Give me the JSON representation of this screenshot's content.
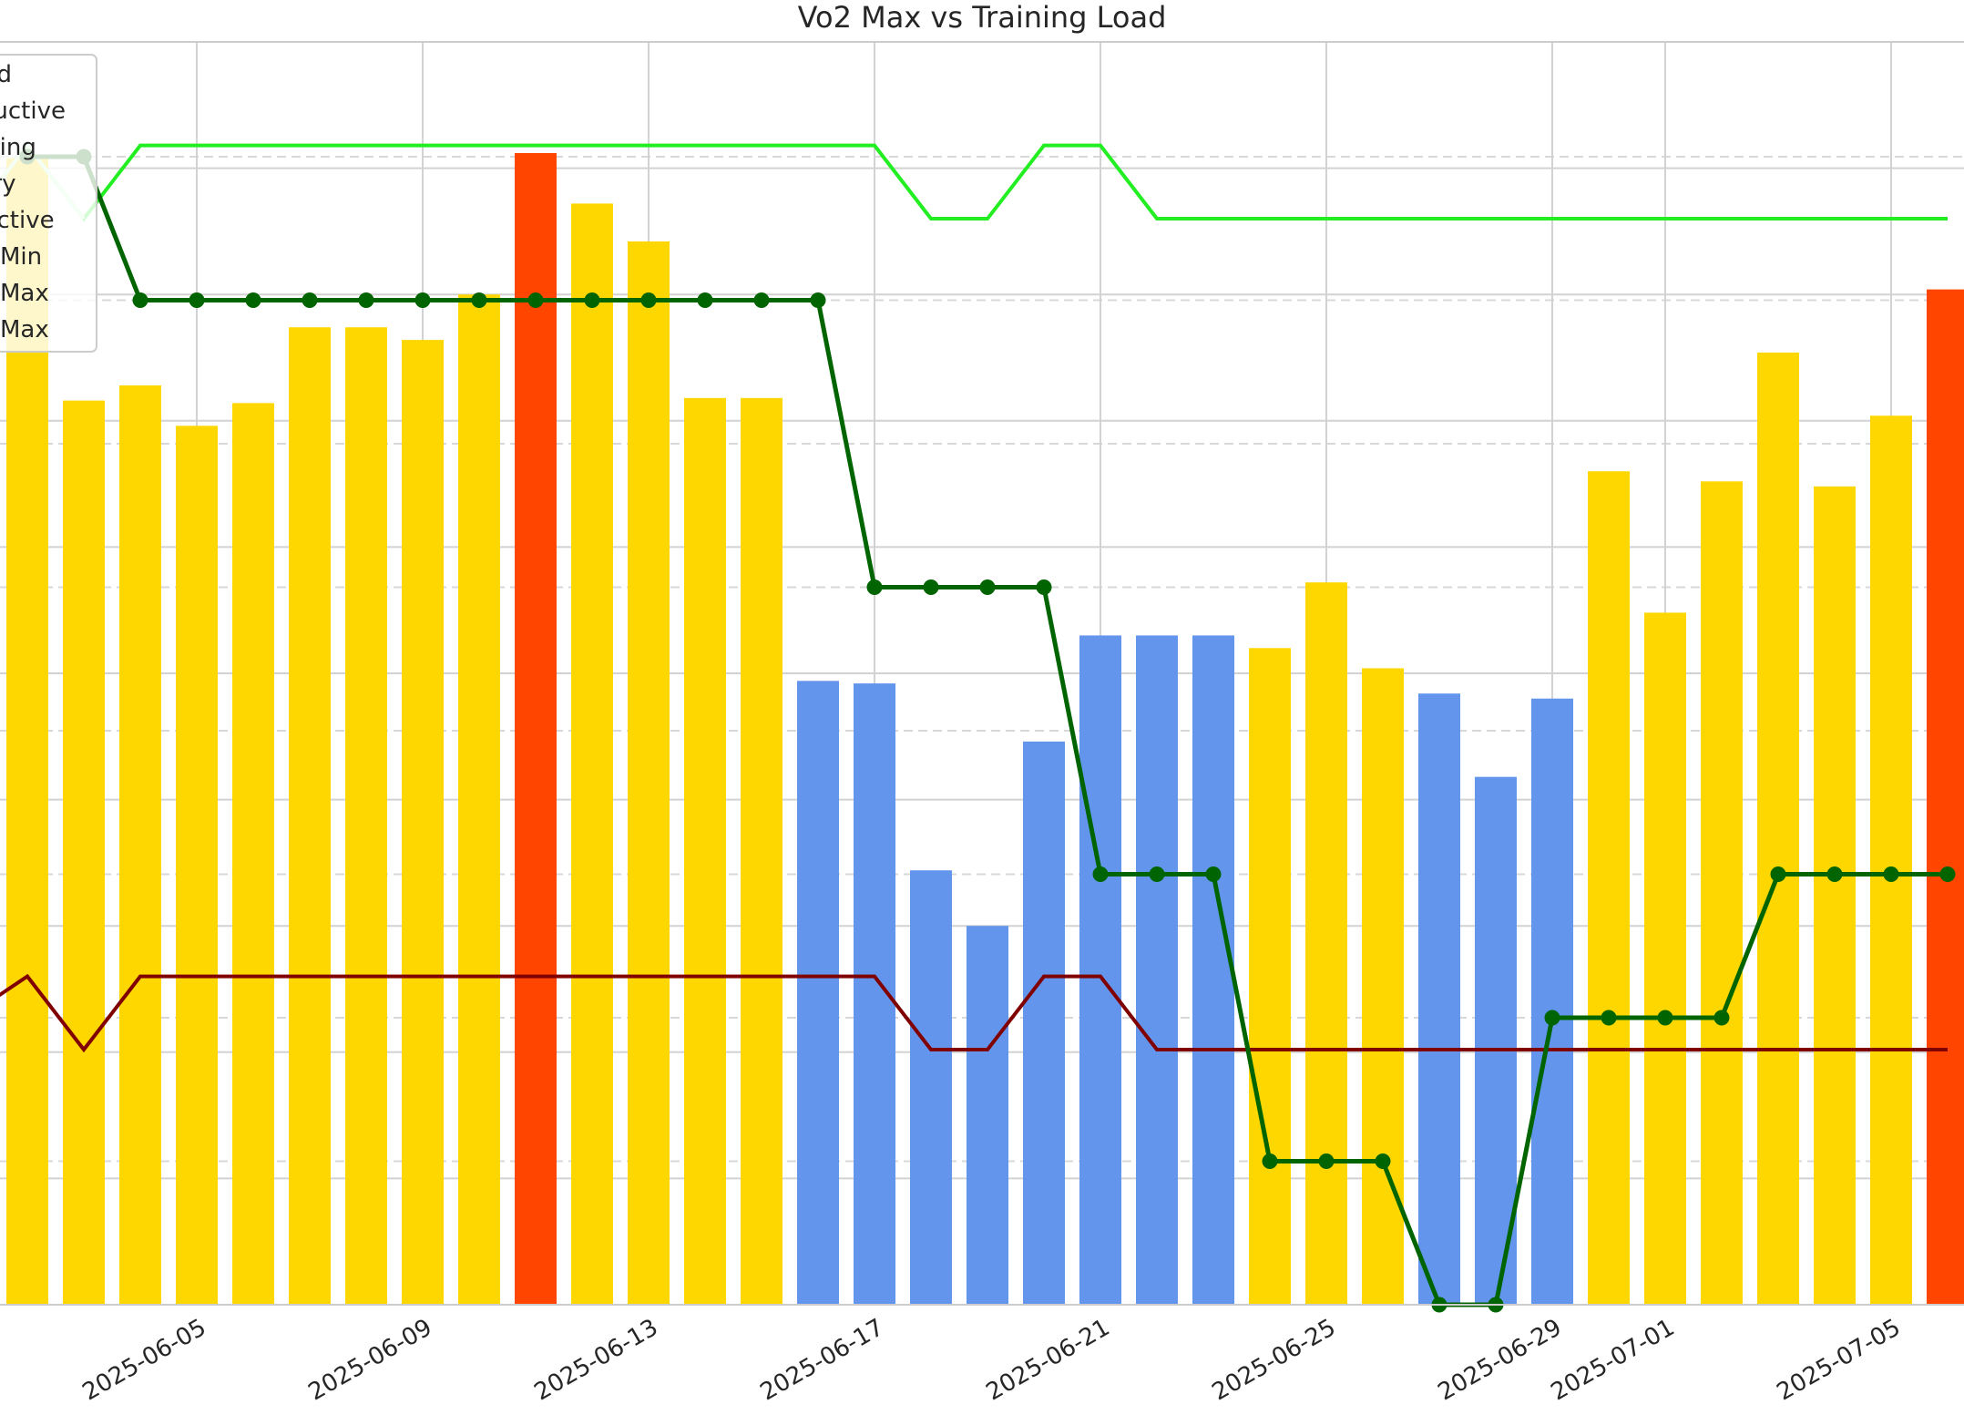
{
  "chart_data": {
    "type": "bar",
    "title": "Vo2 Max vs Training Load",
    "xlabel": "",
    "ylabel": "",
    "grid": true,
    "legend_position": "top-left",
    "legend_entries": [
      "nd",
      "oductive",
      "aining",
      "very",
      "uctive",
      "Min",
      "Max",
      "Max"
    ],
    "dates": [
      "2025-06-02",
      "2025-06-03",
      "2025-06-04",
      "2025-06-05",
      "2025-06-06",
      "2025-06-07",
      "2025-06-08",
      "2025-06-09",
      "2025-06-10",
      "2025-06-11",
      "2025-06-12",
      "2025-06-13",
      "2025-06-14",
      "2025-06-15",
      "2025-06-16",
      "2025-06-17",
      "2025-06-18",
      "2025-06-19",
      "2025-06-20",
      "2025-06-21",
      "2025-06-22",
      "2025-06-23",
      "2025-06-24",
      "2025-06-25",
      "2025-06-26",
      "2025-06-27",
      "2025-06-28",
      "2025-06-29",
      "2025-06-30",
      "2025-07-01",
      "2025-07-02",
      "2025-07-03",
      "2025-07-04",
      "2025-07-05",
      "2025-07-06"
    ],
    "tick_labels": [
      "2025-06-05",
      "2025-06-09",
      "2025-06-13",
      "2025-06-17",
      "2025-06-21",
      "2025-06-25",
      "2025-06-29",
      "2025-07-01",
      "2025-07-05"
    ],
    "tick_dates": [
      "2025-06-05",
      "2025-06-09",
      "2025-06-13",
      "2025-06-17",
      "2025-06-21",
      "2025-06-25",
      "2025-06-29",
      "2025-07-01",
      "2025-07-05"
    ],
    "load": {
      "ylim": [
        0,
        500
      ],
      "values": [
        454,
        358,
        364,
        348,
        357,
        387,
        387,
        382,
        400,
        456,
        436,
        421,
        359,
        359,
        247,
        246,
        172,
        150,
        223,
        265,
        265,
        265,
        260,
        286,
        252,
        242,
        209,
        240,
        330,
        274,
        326,
        377,
        324,
        352,
        402
      ],
      "status": [
        "productive",
        "productive",
        "productive",
        "productive",
        "productive",
        "productive",
        "productive",
        "productive",
        "productive",
        "peaking",
        "productive",
        "productive",
        "productive",
        "productive",
        "recovery",
        "recovery",
        "recovery",
        "recovery",
        "recovery",
        "recovery",
        "recovery",
        "recovery",
        "productive",
        "productive",
        "productive",
        "recovery",
        "recovery",
        "recovery",
        "productive",
        "productive",
        "productive",
        "productive",
        "productive",
        "productive",
        "peaking"
      ],
      "colors": {
        "productive": "#FFD700",
        "recovery": "#6495ED",
        "peaking": "#FF4500"
      }
    },
    "vo2": {
      "ylim": [
        44.0,
        52.8
      ],
      "x": [
        "2025-06-02",
        "2025-06-03",
        "2025-06-04",
        "2025-06-05",
        "2025-06-06",
        "2025-06-07",
        "2025-06-08",
        "2025-06-09",
        "2025-06-10",
        "2025-06-11",
        "2025-06-12",
        "2025-06-13",
        "2025-06-14",
        "2025-06-15",
        "2025-06-16",
        "2025-06-17",
        "2025-06-18",
        "2025-06-19",
        "2025-06-20",
        "2025-06-21",
        "2025-06-22",
        "2025-06-23",
        "2025-06-24",
        "2025-06-25",
        "2025-06-26",
        "2025-06-27",
        "2025-06-28",
        "2025-06-29",
        "2025-06-30",
        "2025-07-01",
        "2025-07-02",
        "2025-07-03",
        "2025-07-04",
        "2025-07-05",
        "2025-07-06"
      ],
      "values": [
        52.0,
        52.0,
        51.0,
        51.0,
        51.0,
        51.0,
        51.0,
        51.0,
        51.0,
        51.0,
        51.0,
        51.0,
        51.0,
        51.0,
        51.0,
        49.0,
        49.0,
        49.0,
        49.0,
        47.0,
        47.0,
        47.0,
        45.0,
        45.0,
        45.0,
        44.0,
        44.0,
        46.0,
        46.0,
        46.0,
        46.0,
        47.0,
        47.0,
        47.0,
        47.0
      ],
      "color": "#006400"
    },
    "range_lines": {
      "x": [
        "2025-06-01",
        "2025-06-02",
        "2025-06-03",
        "2025-06-04",
        "2025-06-05",
        "2025-06-17",
        "2025-06-18",
        "2025-06-19",
        "2025-06-20",
        "2025-06-21",
        "2025-06-22",
        "2025-06-23",
        "2025-07-06"
      ],
      "upper": {
        "values": [
          430,
          459,
          430,
          459,
          459,
          459,
          430,
          430,
          459,
          459,
          430,
          430,
          430
        ],
        "color": "#22EE22"
      },
      "upper_fade": {
        "values": [
          430,
          459,
          430
        ],
        "color": "#CCFFCC"
      },
      "lower": {
        "values": [
          115,
          130,
          101,
          130,
          130,
          130,
          101,
          101,
          130,
          130,
          101,
          101,
          101
        ],
        "color": "#800000"
      }
    }
  }
}
